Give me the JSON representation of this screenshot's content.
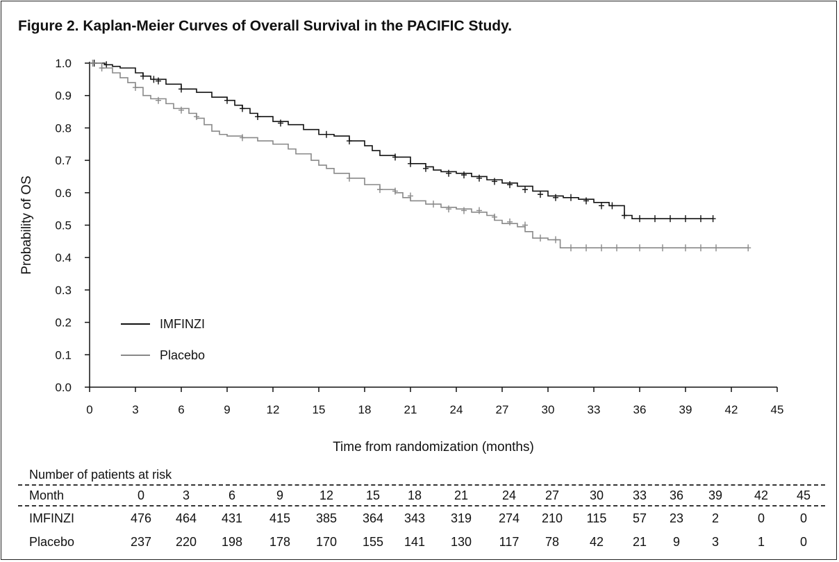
{
  "figure": {
    "title": "Figure 2. Kaplan-Meier Curves of Overall Survival in the PACIFIC Study."
  },
  "chart_data": {
    "type": "line",
    "subtype": "kaplan-meier",
    "xlabel": "Time from randomization (months)",
    "ylabel": "Probability of OS",
    "xlim": [
      0,
      45
    ],
    "ylim": [
      0.0,
      1.0
    ],
    "xticks": [
      "0",
      "3",
      "6",
      "9",
      "12",
      "15",
      "18",
      "21",
      "24",
      "27",
      "30",
      "33",
      "36",
      "39",
      "42",
      "45"
    ],
    "yticks": [
      "0.0",
      "0.1",
      "0.2",
      "0.3",
      "0.4",
      "0.5",
      "0.6",
      "0.7",
      "0.8",
      "0.9",
      "1.0"
    ],
    "grid": false,
    "legend_position": "bottom-left",
    "series": [
      {
        "name": "IMFINZI",
        "color": "#111111",
        "steps": [
          [
            0,
            1.0
          ],
          [
            1.0,
            0.995
          ],
          [
            1.5,
            0.99
          ],
          [
            2.0,
            0.985
          ],
          [
            3.0,
            0.97
          ],
          [
            3.5,
            0.96
          ],
          [
            4.0,
            0.95
          ],
          [
            5.0,
            0.935
          ],
          [
            6.0,
            0.92
          ],
          [
            7.0,
            0.91
          ],
          [
            8.0,
            0.895
          ],
          [
            9.0,
            0.885
          ],
          [
            9.5,
            0.87
          ],
          [
            10.0,
            0.86
          ],
          [
            10.5,
            0.845
          ],
          [
            11.0,
            0.835
          ],
          [
            12.0,
            0.82
          ],
          [
            13.0,
            0.81
          ],
          [
            14.0,
            0.795
          ],
          [
            15.0,
            0.78
          ],
          [
            16.0,
            0.775
          ],
          [
            17.0,
            0.76
          ],
          [
            18.0,
            0.745
          ],
          [
            18.5,
            0.73
          ],
          [
            19.0,
            0.715
          ],
          [
            20.0,
            0.71
          ],
          [
            21.0,
            0.69
          ],
          [
            22.0,
            0.68
          ],
          [
            22.5,
            0.67
          ],
          [
            23.0,
            0.665
          ],
          [
            24.0,
            0.66
          ],
          [
            25.0,
            0.65
          ],
          [
            26.0,
            0.64
          ],
          [
            27.0,
            0.63
          ],
          [
            28.0,
            0.62
          ],
          [
            29.0,
            0.605
          ],
          [
            30.0,
            0.59
          ],
          [
            31.0,
            0.585
          ],
          [
            32.0,
            0.58
          ],
          [
            33.0,
            0.57
          ],
          [
            34.0,
            0.56
          ],
          [
            35.0,
            0.53
          ],
          [
            35.5,
            0.52
          ],
          [
            40.8,
            0.52
          ]
        ],
        "censors": [
          [
            0.3,
            1.0
          ],
          [
            1.1,
            0.995
          ],
          [
            3.5,
            0.96
          ],
          [
            4.2,
            0.95
          ],
          [
            4.5,
            0.945
          ],
          [
            6.0,
            0.92
          ],
          [
            9.0,
            0.885
          ],
          [
            10.0,
            0.86
          ],
          [
            11.0,
            0.835
          ],
          [
            12.5,
            0.815
          ],
          [
            15.5,
            0.78
          ],
          [
            17.0,
            0.76
          ],
          [
            20.0,
            0.71
          ],
          [
            21.0,
            0.69
          ],
          [
            22.0,
            0.675
          ],
          [
            23.5,
            0.66
          ],
          [
            24.5,
            0.655
          ],
          [
            25.5,
            0.645
          ],
          [
            26.5,
            0.635
          ],
          [
            27.5,
            0.625
          ],
          [
            28.5,
            0.61
          ],
          [
            29.5,
            0.595
          ],
          [
            30.5,
            0.585
          ],
          [
            31.5,
            0.585
          ],
          [
            32.5,
            0.575
          ],
          [
            33.5,
            0.56
          ],
          [
            34.2,
            0.56
          ],
          [
            35.0,
            0.53
          ],
          [
            36.0,
            0.52
          ],
          [
            37.0,
            0.52
          ],
          [
            38.0,
            0.52
          ],
          [
            39.0,
            0.52
          ],
          [
            40.0,
            0.52
          ],
          [
            40.8,
            0.52
          ]
        ]
      },
      {
        "name": "Placebo",
        "color": "#888888",
        "steps": [
          [
            0,
            1.0
          ],
          [
            0.8,
            0.985
          ],
          [
            1.5,
            0.97
          ],
          [
            2.0,
            0.955
          ],
          [
            2.5,
            0.94
          ],
          [
            3.0,
            0.925
          ],
          [
            3.5,
            0.9
          ],
          [
            4.0,
            0.89
          ],
          [
            5.0,
            0.875
          ],
          [
            5.5,
            0.86
          ],
          [
            6.5,
            0.845
          ],
          [
            7.0,
            0.83
          ],
          [
            7.5,
            0.81
          ],
          [
            8.0,
            0.79
          ],
          [
            8.5,
            0.78
          ],
          [
            9.0,
            0.775
          ],
          [
            10.0,
            0.77
          ],
          [
            11.0,
            0.76
          ],
          [
            12.0,
            0.75
          ],
          [
            13.0,
            0.735
          ],
          [
            13.5,
            0.72
          ],
          [
            14.5,
            0.7
          ],
          [
            15.0,
            0.685
          ],
          [
            15.5,
            0.675
          ],
          [
            16.0,
            0.66
          ],
          [
            17.0,
            0.645
          ],
          [
            18.0,
            0.625
          ],
          [
            19.0,
            0.61
          ],
          [
            20.0,
            0.6
          ],
          [
            20.5,
            0.585
          ],
          [
            21.0,
            0.575
          ],
          [
            22.0,
            0.565
          ],
          [
            23.0,
            0.555
          ],
          [
            24.0,
            0.55
          ],
          [
            25.0,
            0.54
          ],
          [
            26.0,
            0.53
          ],
          [
            26.5,
            0.515
          ],
          [
            27.0,
            0.505
          ],
          [
            28.0,
            0.495
          ],
          [
            28.5,
            0.48
          ],
          [
            29.0,
            0.46
          ],
          [
            30.0,
            0.455
          ],
          [
            30.8,
            0.43
          ],
          [
            43.1,
            0.43
          ]
        ],
        "censors": [
          [
            0.2,
            1.0
          ],
          [
            0.8,
            0.985
          ],
          [
            3.0,
            0.925
          ],
          [
            4.5,
            0.885
          ],
          [
            6.0,
            0.855
          ],
          [
            7.0,
            0.835
          ],
          [
            10.0,
            0.77
          ],
          [
            17.0,
            0.645
          ],
          [
            19.0,
            0.61
          ],
          [
            20.0,
            0.605
          ],
          [
            21.0,
            0.59
          ],
          [
            22.5,
            0.565
          ],
          [
            23.5,
            0.55
          ],
          [
            24.5,
            0.545
          ],
          [
            25.5,
            0.545
          ],
          [
            26.5,
            0.525
          ],
          [
            27.5,
            0.51
          ],
          [
            28.5,
            0.5
          ],
          [
            29.5,
            0.46
          ],
          [
            30.5,
            0.455
          ],
          [
            31.5,
            0.43
          ],
          [
            32.5,
            0.43
          ],
          [
            33.5,
            0.43
          ],
          [
            34.5,
            0.43
          ],
          [
            36.0,
            0.43
          ],
          [
            37.5,
            0.43
          ],
          [
            39.0,
            0.43
          ],
          [
            40.0,
            0.43
          ],
          [
            41.0,
            0.43
          ],
          [
            43.1,
            0.43
          ]
        ]
      }
    ],
    "risk_table": {
      "title": "Number of patients at risk",
      "header_label": "Month",
      "months": [
        "0",
        "3",
        "6",
        "9",
        "12",
        "15",
        "18",
        "21",
        "24",
        "27",
        "30",
        "33",
        "36",
        "39",
        "42",
        "45"
      ],
      "rows": [
        {
          "label": "IMFINZI",
          "values": [
            "476",
            "464",
            "431",
            "415",
            "385",
            "364",
            "343",
            "319",
            "274",
            "210",
            "115",
            "57",
            "23",
            "2",
            "0",
            "0"
          ]
        },
        {
          "label": "Placebo",
          "values": [
            "237",
            "220",
            "198",
            "178",
            "170",
            "155",
            "141",
            "130",
            "117",
            "78",
            "42",
            "21",
            "9",
            "3",
            "1",
            "0"
          ]
        }
      ]
    }
  }
}
